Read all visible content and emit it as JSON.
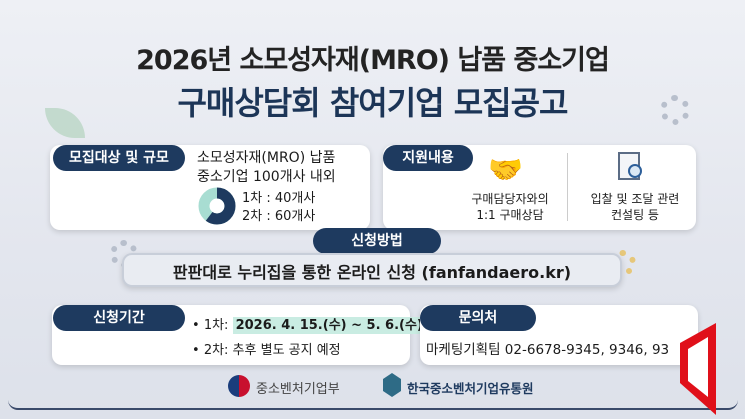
{
  "title": {
    "line1": "2026년 소모성자재(MRO) 납품 중소기업",
    "line2": "구매상담회 참여기업 모집공고"
  },
  "target": {
    "label": "모집대상 및 규모",
    "desc1": "소모성자재(MRO) 납품",
    "desc2": "중소기업 100개사 내외",
    "round1": "1차 : 40개사",
    "round2": "2차 : 60개사",
    "chart": {
      "round1_share": 40,
      "round2_share": 60,
      "colors": [
        "#a8ddd2",
        "#1e3a5f"
      ]
    }
  },
  "support": {
    "label": "지원내용",
    "item1_line1": "구매담당자와의",
    "item1_line2": "1:1 구매상담",
    "item1_icon": "handshake-icon",
    "item2_line1": "입찰 및 조달 관련",
    "item2_line2": "컨설팅 등",
    "item2_icon": "document-search-icon"
  },
  "method": {
    "label": "신청방법",
    "text": "판판대로 누리집을 통한 온라인 신청 (fanfandaero.kr)"
  },
  "period": {
    "label": "신청기간",
    "round1_prefix": "1차: ",
    "round1_dates": "2026. 4. 15.(수) ~ 5. 6.(수)",
    "round2": "2차: 추후 별도 공지 예정"
  },
  "contact": {
    "label": "문의처",
    "text": "마케팅기획팀 02-6678-9345, 9346, 93"
  },
  "footer": {
    "org1": "중소벤처기업부",
    "org2": "한국중소벤처기업유통원"
  },
  "colors": {
    "navy": "#1e3a5f",
    "mint": "#c9ece2",
    "red": "#e0101a"
  }
}
